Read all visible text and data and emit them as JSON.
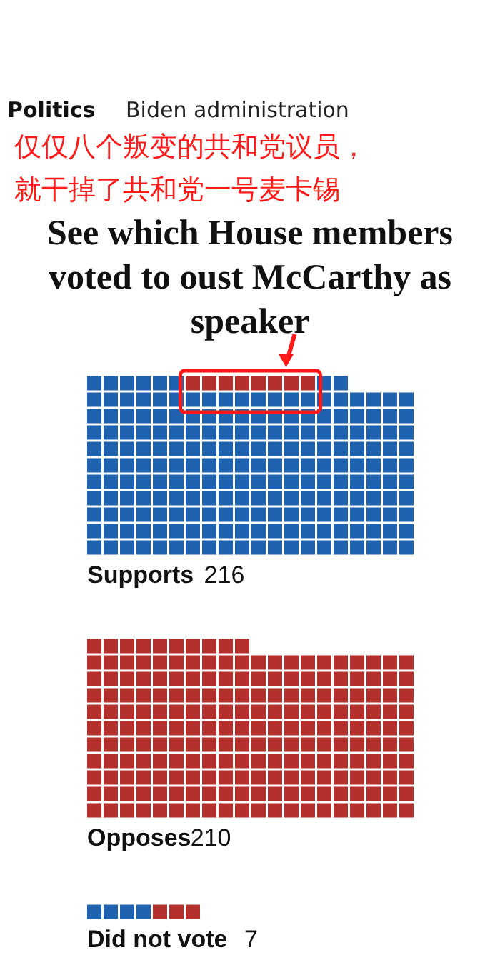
{
  "chart_data": {
    "type": "other",
    "title": "See which House members voted to oust McCarthy as speaker",
    "categories": [
      "Supports",
      "Opposes",
      "Did not vote"
    ],
    "values": [
      216,
      210,
      7
    ],
    "data_labels": true,
    "colors": [
      [
        "#1f63b0",
        "#1f63b0",
        "#1f63b0",
        "#1f63b0",
        "#1f63b0",
        "#1f63b0",
        "#1f63b0",
        "#1f63b0",
        "#1f63b0",
        "#1f63b0",
        "#1f63b0",
        "#1f63b0",
        "#1f63b0",
        "#1f63b0",
        "#1f63b0",
        "#1f63b0",
        "#1f63b0",
        "#1f63b0",
        "#1f63b0",
        "#1f63b0",
        "#1f63b0",
        "#1f63b0",
        "#1f63b0",
        "#1f63b0",
        "#1f63b0",
        "#1f63b0",
        "#1f63b0",
        "#1f63b0",
        "#1f63b0",
        "#1f63b0",
        "#1f63b0",
        "#1f63b0",
        "#1f63b0",
        "#1f63b0",
        "#1f63b0",
        "#1f63b0",
        "#1f63b0",
        "#1f63b0",
        "#1f63b0",
        "#1f63b0",
        "#1f63b0",
        "#1f63b0",
        "#1f63b0",
        "#1f63b0",
        "#1f63b0",
        "#1f63b0",
        "#1f63b0",
        "#1f63b0",
        "#1f63b0",
        "#1f63b0",
        "#1f63b0",
        "#1f63b0",
        "#1f63b0",
        "#1f63b0",
        "#1f63b0",
        "#1f63b0",
        "#1f63b0",
        "#1f63b0",
        "#1f63b0",
        "#1f63b0",
        "#1f63b0",
        "#1f63b0",
        "#1f63b0",
        "#1f63b0",
        "#1f63b0",
        "#1f63b0",
        "#1f63b0",
        "#1f63b0",
        "#1f63b0",
        "#1f63b0",
        "#1f63b0",
        "#1f63b0",
        "#1f63b0",
        "#1f63b0",
        "#1f63b0",
        "#1f63b0",
        "#1f63b0",
        "#1f63b0",
        "#1f63b0",
        "#1f63b0",
        "#1f63b0",
        "#1f63b0",
        "#1f63b0",
        "#1f63b0",
        "#1f63b0",
        "#1f63b0",
        "#1f63b0",
        "#1f63b0",
        "#1f63b0",
        "#1f63b0",
        "#1f63b0",
        "#1f63b0",
        "#1f63b0",
        "#1f63b0",
        "#1f63b0",
        "#1f63b0",
        "#1f63b0",
        "#1f63b0",
        "#1f63b0",
        "#1f63b0",
        "#1f63b0",
        "#1f63b0",
        "#1f63b0",
        "#1f63b0",
        "#1f63b0",
        "#1f63b0",
        "#1f63b0",
        "#1f63b0",
        "#1f63b0",
        "#1f63b0",
        "#1f63b0",
        "#1f63b0",
        "#1f63b0",
        "#1f63b0",
        "#1f63b0",
        "#1f63b0",
        "#1f63b0",
        "#1f63b0",
        "#1f63b0",
        "#1f63b0",
        "#1f63b0",
        "#1f63b0",
        "#1f63b0",
        "#1f63b0",
        "#1f63b0",
        "#1f63b0",
        "#1f63b0",
        "#1f63b0",
        "#1f63b0",
        "#1f63b0",
        "#1f63b0",
        "#1f63b0",
        "#1f63b0",
        "#1f63b0",
        "#1f63b0",
        "#1f63b0",
        "#1f63b0",
        "#1f63b0",
        "#1f63b0",
        "#1f63b0",
        "#1f63b0",
        "#1f63b0",
        "#1f63b0",
        "#1f63b0",
        "#1f63b0",
        "#1f63b0",
        "#1f63b0",
        "#1f63b0",
        "#1f63b0",
        "#1f63b0",
        "#1f63b0",
        "#1f63b0",
        "#1f63b0",
        "#1f63b0",
        "#1f63b0",
        "#1f63b0",
        "#1f63b0",
        "#1f63b0",
        "#1f63b0",
        "#1f63b0",
        "#1f63b0",
        "#1f63b0",
        "#1f63b0",
        "#1f63b0",
        "#1f63b0",
        "#1f63b0",
        "#1f63b0",
        "#1f63b0",
        "#1f63b0",
        "#1f63b0",
        "#1f63b0",
        "#1f63b0",
        "#1f63b0",
        "#1f63b0",
        "#1f63b0",
        "#1f63b0",
        "#1f63b0",
        "#1f63b0",
        "#1f63b0",
        "#1f63b0",
        "#1f63b0",
        "#1f63b0",
        "#1f63b0",
        "#1f63b0",
        "#1f63b0",
        "#1f63b0",
        "#1f63b0",
        "#1f63b0",
        "#1f63b0",
        "#1f63b0",
        "#1f63b0",
        "#1f63b0",
        "#1f63b0",
        "#1f63b0",
        "#1f63b0",
        "#1f63b0",
        "#1f63b0",
        "#1f63b0",
        "#1f63b0",
        "#1f63b0",
        "#1f63b0",
        "#1f63b0",
        "#1f63b0",
        "#1f63b0",
        "#1f63b0",
        "#1f63b0",
        "#b3302c",
        "#b3302c",
        "#b3302c",
        "#b3302c",
        "#b3302c",
        "#b3302c",
        "#b3302c",
        "#b3302c"
      ],
      [
        "#b3302c",
        "#b3302c",
        "#b3302c",
        "#b3302c",
        "#b3302c",
        "#b3302c",
        "#b3302c",
        "#b3302c",
        "#b3302c",
        "#b3302c",
        "#b3302c",
        "#b3302c",
        "#b3302c",
        "#b3302c",
        "#b3302c",
        "#b3302c",
        "#b3302c",
        "#b3302c",
        "#b3302c",
        "#b3302c",
        "#b3302c",
        "#b3302c",
        "#b3302c",
        "#b3302c",
        "#b3302c",
        "#b3302c",
        "#b3302c",
        "#b3302c",
        "#b3302c",
        "#b3302c",
        "#b3302c",
        "#b3302c",
        "#b3302c",
        "#b3302c",
        "#b3302c",
        "#b3302c",
        "#b3302c",
        "#b3302c",
        "#b3302c",
        "#b3302c",
        "#b3302c",
        "#b3302c",
        "#b3302c",
        "#b3302c",
        "#b3302c",
        "#b3302c",
        "#b3302c",
        "#b3302c",
        "#b3302c",
        "#b3302c",
        "#b3302c",
        "#b3302c",
        "#b3302c",
        "#b3302c",
        "#b3302c",
        "#b3302c",
        "#b3302c",
        "#b3302c",
        "#b3302c",
        "#b3302c",
        "#b3302c",
        "#b3302c",
        "#b3302c",
        "#b3302c",
        "#b3302c",
        "#b3302c",
        "#b3302c",
        "#b3302c",
        "#b3302c",
        "#b3302c",
        "#b3302c",
        "#b3302c",
        "#b3302c",
        "#b3302c",
        "#b3302c",
        "#b3302c",
        "#b3302c",
        "#b3302c",
        "#b3302c",
        "#b3302c",
        "#b3302c",
        "#b3302c",
        "#b3302c",
        "#b3302c",
        "#b3302c",
        "#b3302c",
        "#b3302c",
        "#b3302c",
        "#b3302c",
        "#b3302c",
        "#b3302c",
        "#b3302c",
        "#b3302c",
        "#b3302c",
        "#b3302c",
        "#b3302c",
        "#b3302c",
        "#b3302c",
        "#b3302c",
        "#b3302c",
        "#b3302c",
        "#b3302c",
        "#b3302c",
        "#b3302c",
        "#b3302c",
        "#b3302c",
        "#b3302c",
        "#b3302c",
        "#b3302c",
        "#b3302c",
        "#b3302c",
        "#b3302c",
        "#b3302c",
        "#b3302c",
        "#b3302c",
        "#b3302c",
        "#b3302c",
        "#b3302c",
        "#b3302c",
        "#b3302c",
        "#b3302c",
        "#b3302c",
        "#b3302c",
        "#b3302c",
        "#b3302c",
        "#b3302c",
        "#b3302c",
        "#b3302c",
        "#b3302c",
        "#b3302c",
        "#b3302c",
        "#b3302c",
        "#b3302c",
        "#b3302c",
        "#b3302c",
        "#b3302c",
        "#b3302c",
        "#b3302c",
        "#b3302c",
        "#b3302c",
        "#b3302c",
        "#b3302c",
        "#b3302c",
        "#b3302c",
        "#b3302c",
        "#b3302c",
        "#b3302c",
        "#b3302c",
        "#b3302c",
        "#b3302c",
        "#b3302c",
        "#b3302c",
        "#b3302c",
        "#b3302c",
        "#b3302c",
        "#b3302c",
        "#b3302c",
        "#b3302c",
        "#b3302c",
        "#b3302c",
        "#b3302c",
        "#b3302c",
        "#b3302c",
        "#b3302c",
        "#b3302c",
        "#b3302c",
        "#b3302c",
        "#b3302c",
        "#b3302c",
        "#b3302c",
        "#b3302c",
        "#b3302c",
        "#b3302c",
        "#b3302c",
        "#b3302c",
        "#b3302c",
        "#b3302c",
        "#b3302c",
        "#b3302c",
        "#b3302c",
        "#b3302c",
        "#b3302c",
        "#b3302c",
        "#b3302c",
        "#b3302c",
        "#b3302c",
        "#b3302c",
        "#b3302c",
        "#b3302c",
        "#b3302c",
        "#b3302c",
        "#b3302c",
        "#b3302c",
        "#b3302c",
        "#b3302c",
        "#b3302c",
        "#b3302c",
        "#b3302c",
        "#b3302c",
        "#b3302c",
        "#b3302c",
        "#b3302c",
        "#b3302c",
        "#b3302c",
        "#b3302c",
        "#b3302c",
        "#b3302c",
        "#b3302c"
      ],
      [
        "#1f63b0",
        "#1f63b0",
        "#1f63b0",
        "#1f63b0",
        "#b3302c",
        "#b3302c",
        "#b3302c"
      ]
    ],
    "annotations": [
      "Politics",
      "Biden administration",
      "仅仅八个叛变的共和党议员，",
      "就干掉了共和党一号麦卡锡"
    ]
  }
}
